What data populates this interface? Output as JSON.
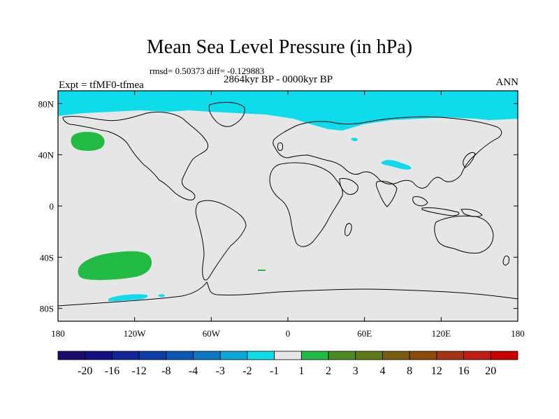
{
  "title": "Mean Sea Level Pressure (in hPa)",
  "stats": "rmsd= 0.50373  diff= -0.129883",
  "experiment": "Expt = tfMF0-tfmea",
  "period": "2864kyr BP - 0000kyr BP",
  "season": "ANN",
  "colors": {
    "ocean": "#e6e6e6",
    "coast": "#000000"
  },
  "axes": {
    "lat_ticks": [
      "80N",
      "40N",
      "0",
      "40S",
      "80S"
    ],
    "lon_ticks": [
      "180",
      "120W",
      "60W",
      "0",
      "60E",
      "120E",
      "180"
    ]
  },
  "colorbar": {
    "labels": [
      "-20",
      "-16",
      "-12",
      "-8",
      "-4",
      "-3",
      "-2",
      "-1",
      "1",
      "2",
      "3",
      "4",
      "8",
      "12",
      "16",
      "20"
    ],
    "colors": [
      "#1a0a6b",
      "#130e82",
      "#10259a",
      "#0e3ca8",
      "#0a57b7",
      "#0b78c4",
      "#0aa8d8",
      "#0fdcea",
      "#e6e6e6",
      "#22bb44",
      "#4a8c22",
      "#5e7a16",
      "#7a5c10",
      "#8c4a0a",
      "#a83214",
      "#c01e14",
      "#cc0000"
    ]
  },
  "chart_data": {
    "type": "map",
    "projection": "cylindrical-equidistant",
    "lon_range": [
      -180,
      180
    ],
    "lat_range": [
      -90,
      90
    ],
    "anomaly_regions": [
      {
        "name": "arctic-band",
        "class": "-2..-1",
        "lon": [
          -180,
          180
        ],
        "lat": [
          70,
          90
        ]
      },
      {
        "name": "north-pacific-high",
        "class": "1..2",
        "center_lon": -155,
        "center_lat": 47
      },
      {
        "name": "south-pacific-high",
        "class": "1..2",
        "center_lon": -140,
        "center_lat": -46
      },
      {
        "name": "tibet-low",
        "class": "-2..-1",
        "center_lon": 83,
        "center_lat": 36
      },
      {
        "name": "southern-ocean-low",
        "class": "-2..-1",
        "center_lon": -132,
        "center_lat": -72
      }
    ]
  }
}
